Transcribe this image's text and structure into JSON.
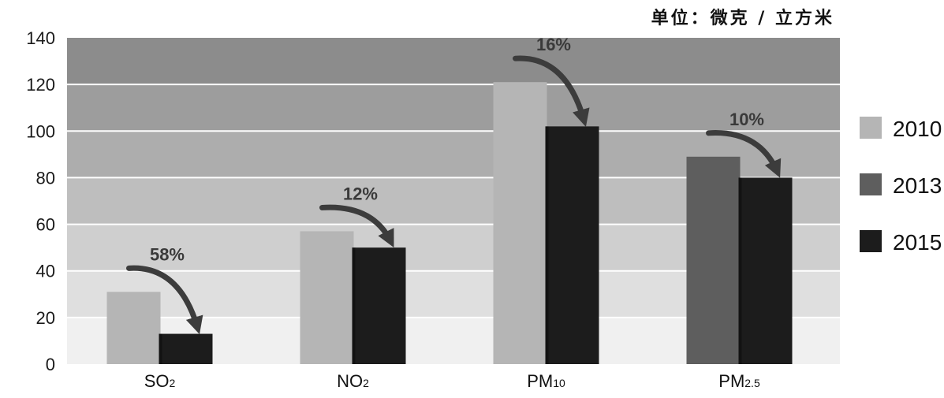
{
  "chart_data": {
    "type": "bar",
    "unit_label": "单位：微克 / 立方米",
    "categories": [
      {
        "main": "SO",
        "sub": "2"
      },
      {
        "main": "NO",
        "sub": "2"
      },
      {
        "main": "PM",
        "sub": "10"
      },
      {
        "main": "PM",
        "sub": "2.5"
      }
    ],
    "series": [
      {
        "name": "2010",
        "color": "#b5b5b5",
        "values": [
          31,
          57,
          121,
          null
        ]
      },
      {
        "name": "2013",
        "color": "#5e5e5e",
        "values": [
          null,
          null,
          null,
          89
        ]
      },
      {
        "name": "2015",
        "color": "#1c1c1c",
        "values": [
          13,
          50,
          102,
          80
        ]
      }
    ],
    "bar_pairs": [
      {
        "category": 0,
        "from": "2010",
        "to": "2015"
      },
      {
        "category": 1,
        "from": "2010",
        "to": "2015"
      },
      {
        "category": 2,
        "from": "2010",
        "to": "2015"
      },
      {
        "category": 3,
        "from": "2013",
        "to": "2015"
      }
    ],
    "annotations": [
      "58%",
      "12%",
      "16%",
      "10%"
    ],
    "yticks": [
      0,
      20,
      40,
      60,
      80,
      100,
      120,
      140
    ],
    "ylim": [
      0,
      140
    ],
    "grid": true,
    "legend_position": "right"
  }
}
